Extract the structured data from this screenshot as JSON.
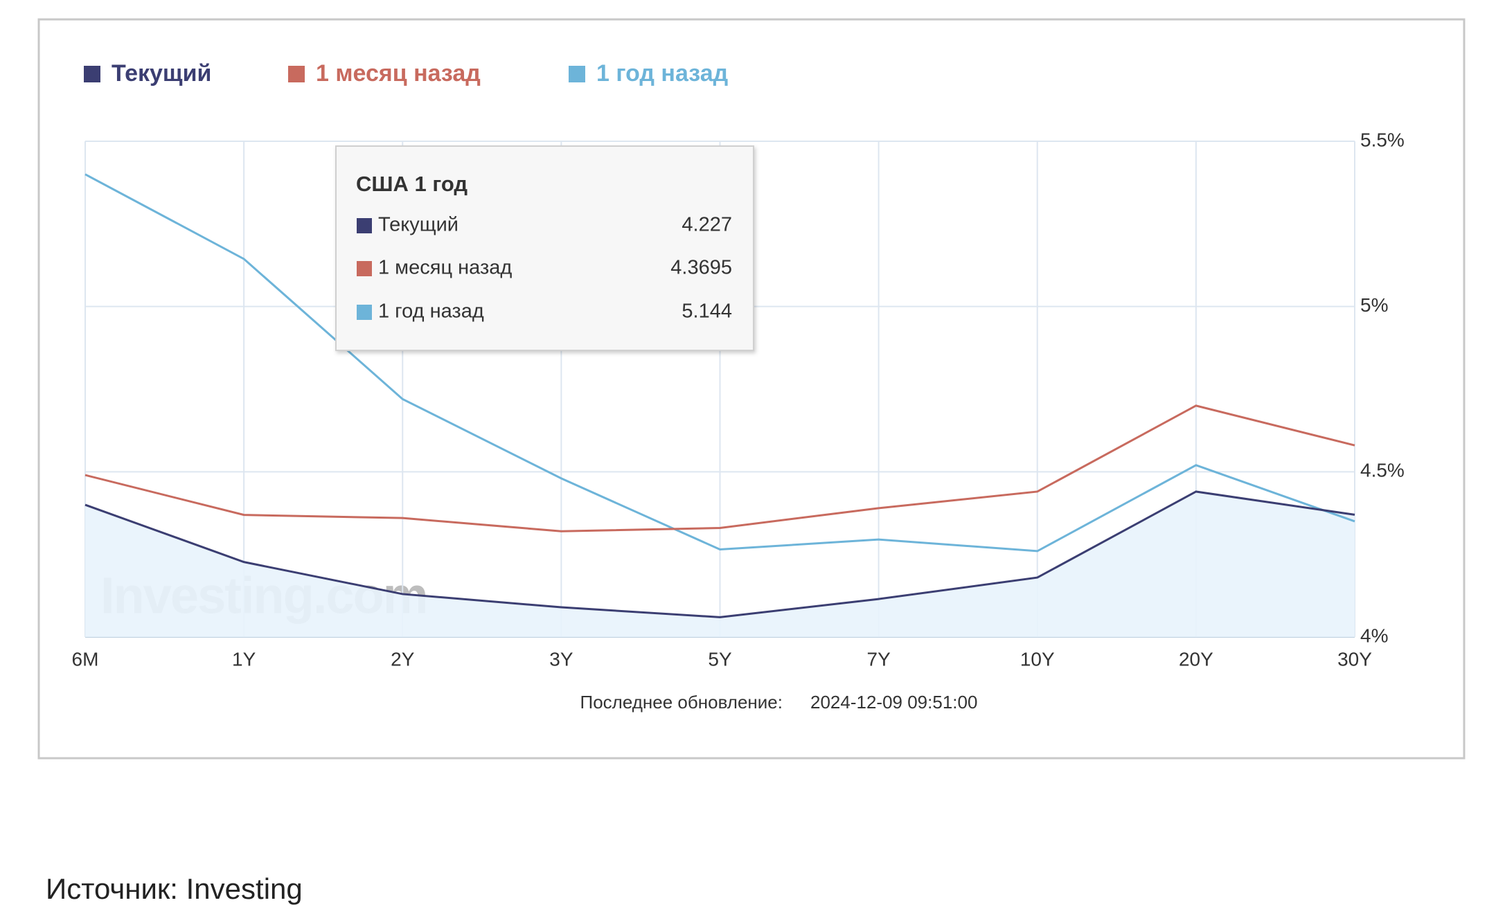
{
  "chart_data": {
    "type": "line",
    "categories": [
      "6M",
      "1Y",
      "2Y",
      "3Y",
      "5Y",
      "7Y",
      "10Y",
      "20Y",
      "30Y"
    ],
    "series": [
      {
        "name": "Текущий",
        "color": "#3b3e72",
        "values": [
          4.4,
          4.227,
          4.13,
          4.09,
          4.06,
          4.115,
          4.18,
          4.44,
          4.37
        ]
      },
      {
        "name": "1 месяц назад",
        "color": "#c86a5e",
        "values": [
          4.49,
          4.3695,
          4.36,
          4.32,
          4.33,
          4.39,
          4.44,
          4.7,
          4.58
        ]
      },
      {
        "name": "1 год назад",
        "color": "#6db4d9",
        "values": [
          5.4,
          5.144,
          4.72,
          4.48,
          4.265,
          4.295,
          4.26,
          4.52,
          4.35
        ]
      }
    ],
    "ylim": [
      4,
      5.5
    ],
    "yticks": [
      {
        "value": 4,
        "label": "4%"
      },
      {
        "value": 4.5,
        "label": "4.5%"
      },
      {
        "value": 5,
        "label": "5%"
      },
      {
        "value": 5.5,
        "label": "5.5%"
      }
    ],
    "grid": true,
    "y_axis_side": "right",
    "area_under_first_series": true,
    "tooltip": {
      "title": "США 1 год",
      "category_index": 1
    },
    "watermark": "Investing.com",
    "update_label": "Последнее обновление:",
    "update_time": "2024-12-09 09:51:00"
  },
  "caption": "Источник: Investing"
}
